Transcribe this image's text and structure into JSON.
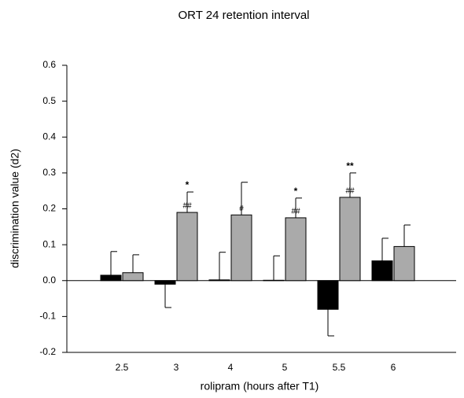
{
  "chart_data": {
    "type": "bar",
    "title": "ORT 24 retention interval",
    "x_label": "rolipram (hours after T1)",
    "y_label": "discrimination value (d2)",
    "categories": [
      "2.5",
      "3",
      "4",
      "5",
      "5.5",
      "6"
    ],
    "series": [
      {
        "color": "#000000",
        "values": [
          0.015,
          -0.01,
          0.002,
          0.001,
          -0.08,
          0.055
        ],
        "errors": [
          0.066,
          0.065,
          0.077,
          0.068,
          0.074,
          0.063
        ]
      },
      {
        "color": "#aaaaaa",
        "values": [
          0.022,
          0.19,
          0.183,
          0.175,
          0.232,
          0.095
        ],
        "errors": [
          0.05,
          0.057,
          0.091,
          0.055,
          0.068,
          0.06
        ],
        "significance": [
          null,
          "*",
          null,
          "*",
          "**",
          null
        ],
        "hash": [
          null,
          "##",
          "#",
          "##",
          "##",
          null
        ]
      }
    ],
    "ylim": [
      -0.2,
      0.6
    ],
    "yticks": [
      -0.2,
      -0.1,
      {
        "value": 0,
        "label": "0.0"
      },
      0.1,
      0.2,
      0.3,
      0.4,
      0.5,
      0.6
    ],
    "grid": false
  }
}
